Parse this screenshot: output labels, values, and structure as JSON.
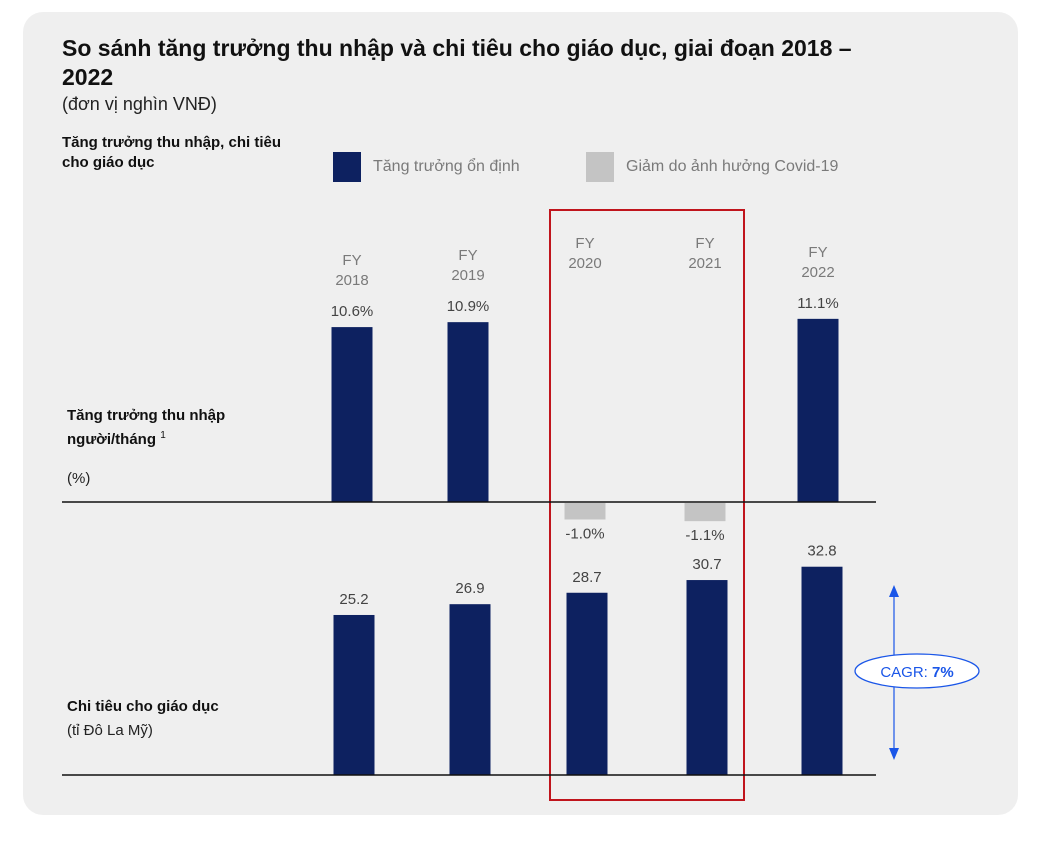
{
  "title": "So sánh tăng trưởng thu nhập và chi tiêu cho giáo dục, giai đoạn 2018 – 2022",
  "subtitle": "(đơn vị nghìn VNĐ)",
  "left_heading": "Tăng trưởng thu nhập, chi tiêu cho giáo dục",
  "legend": [
    {
      "label": "Tăng trưởng ổn định",
      "color": "#0d2160"
    },
    {
      "label": "Giảm do ảnh hưởng Covid-19",
      "color": "#c4c4c4"
    }
  ],
  "rows": {
    "income": {
      "label_line1": "Tăng trưởng thu nhập",
      "label_line2": "người/tháng",
      "footnote": "1",
      "unit": "(%)"
    },
    "education": {
      "label": "Chi tiêu cho giáo dục",
      "unit": "(tỉ Đô La Mỹ)"
    }
  },
  "colors": {
    "stable": "#0d2160",
    "covid": "#c4c4c4",
    "highlight_box": "#c0141c",
    "cagr": "#1a56e8"
  },
  "chart_data": [
    {
      "type": "bar",
      "name_row": "income",
      "categories": [
        "FY 2018",
        "FY 2019",
        "FY 2020",
        "FY 2021",
        "FY 2022"
      ],
      "category_lines": [
        [
          "FY",
          "2018"
        ],
        [
          "FY",
          "2019"
        ],
        [
          "FY",
          "2020"
        ],
        [
          "FY",
          "2021"
        ],
        [
          "FY",
          "2022"
        ]
      ],
      "values": [
        10.6,
        10.9,
        -1.0,
        -1.1,
        11.1
      ],
      "labels": [
        "10.6%",
        "10.9%",
        "-1.0%",
        "-1.1%",
        "11.1%"
      ],
      "status": [
        "stable",
        "stable",
        "covid",
        "covid",
        "stable"
      ]
    },
    {
      "type": "bar",
      "name_row": "education",
      "categories": [
        "FY 2018",
        "FY 2019",
        "FY 2020",
        "FY 2021",
        "FY 2022"
      ],
      "values": [
        25.2,
        26.9,
        28.7,
        30.7,
        32.8
      ],
      "labels": [
        "25.2",
        "26.9",
        "28.7",
        "30.7",
        "32.8"
      ],
      "status": [
        "stable",
        "stable",
        "stable",
        "stable",
        "stable"
      ]
    }
  ],
  "highlight": {
    "categories": [
      "FY 2020",
      "FY 2021"
    ]
  },
  "cagr": {
    "prefix": "CAGR: ",
    "value": "7%"
  }
}
